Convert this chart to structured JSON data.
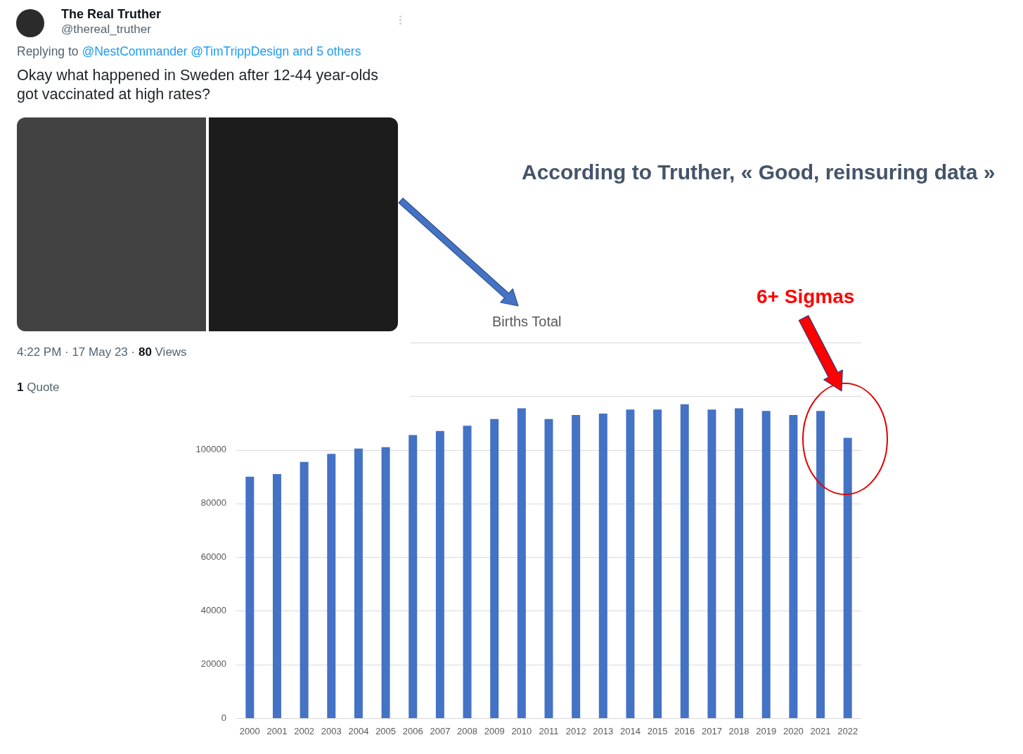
{
  "chart_data": {
    "type": "bar",
    "title": "Births Total",
    "categories": [
      "2000",
      "2001",
      "2002",
      "2003",
      "2004",
      "2005",
      "2006",
      "2007",
      "2008",
      "2009",
      "2010",
      "2011",
      "2012",
      "2013",
      "2014",
      "2015",
      "2016",
      "2017",
      "2018",
      "2019",
      "2020",
      "2021",
      "2022"
    ],
    "values": [
      90000,
      91000,
      95500,
      98500,
      100500,
      101000,
      105500,
      107000,
      109000,
      111500,
      115500,
      111500,
      113000,
      113500,
      115000,
      115000,
      117000,
      115000,
      115500,
      114500,
      113000,
      114500,
      104500
    ],
    "color": "#4472c4",
    "ylim": [
      0,
      140000
    ],
    "yticks": [
      0,
      20000,
      40000,
      60000,
      80000,
      100000,
      {
        "value": 120000,
        "label": null
      },
      {
        "value": 140000,
        "label": null
      }
    ],
    "grid": "y",
    "annotations": [
      "The Real Truther",
      "@thereal_truther",
      "Replying to",
      "@NestCommander @TimTrippDesign and 5 others",
      "Okay what happened in Sweden after 12-44 year-olds got vaccinated at high rates?",
      "4:22 PM · 17 May 23 ·",
      "80",
      "Views",
      "1",
      "Quote",
      "According to Truther, « Good, reinsuring data »",
      "6+ Sigmas"
    ]
  }
}
